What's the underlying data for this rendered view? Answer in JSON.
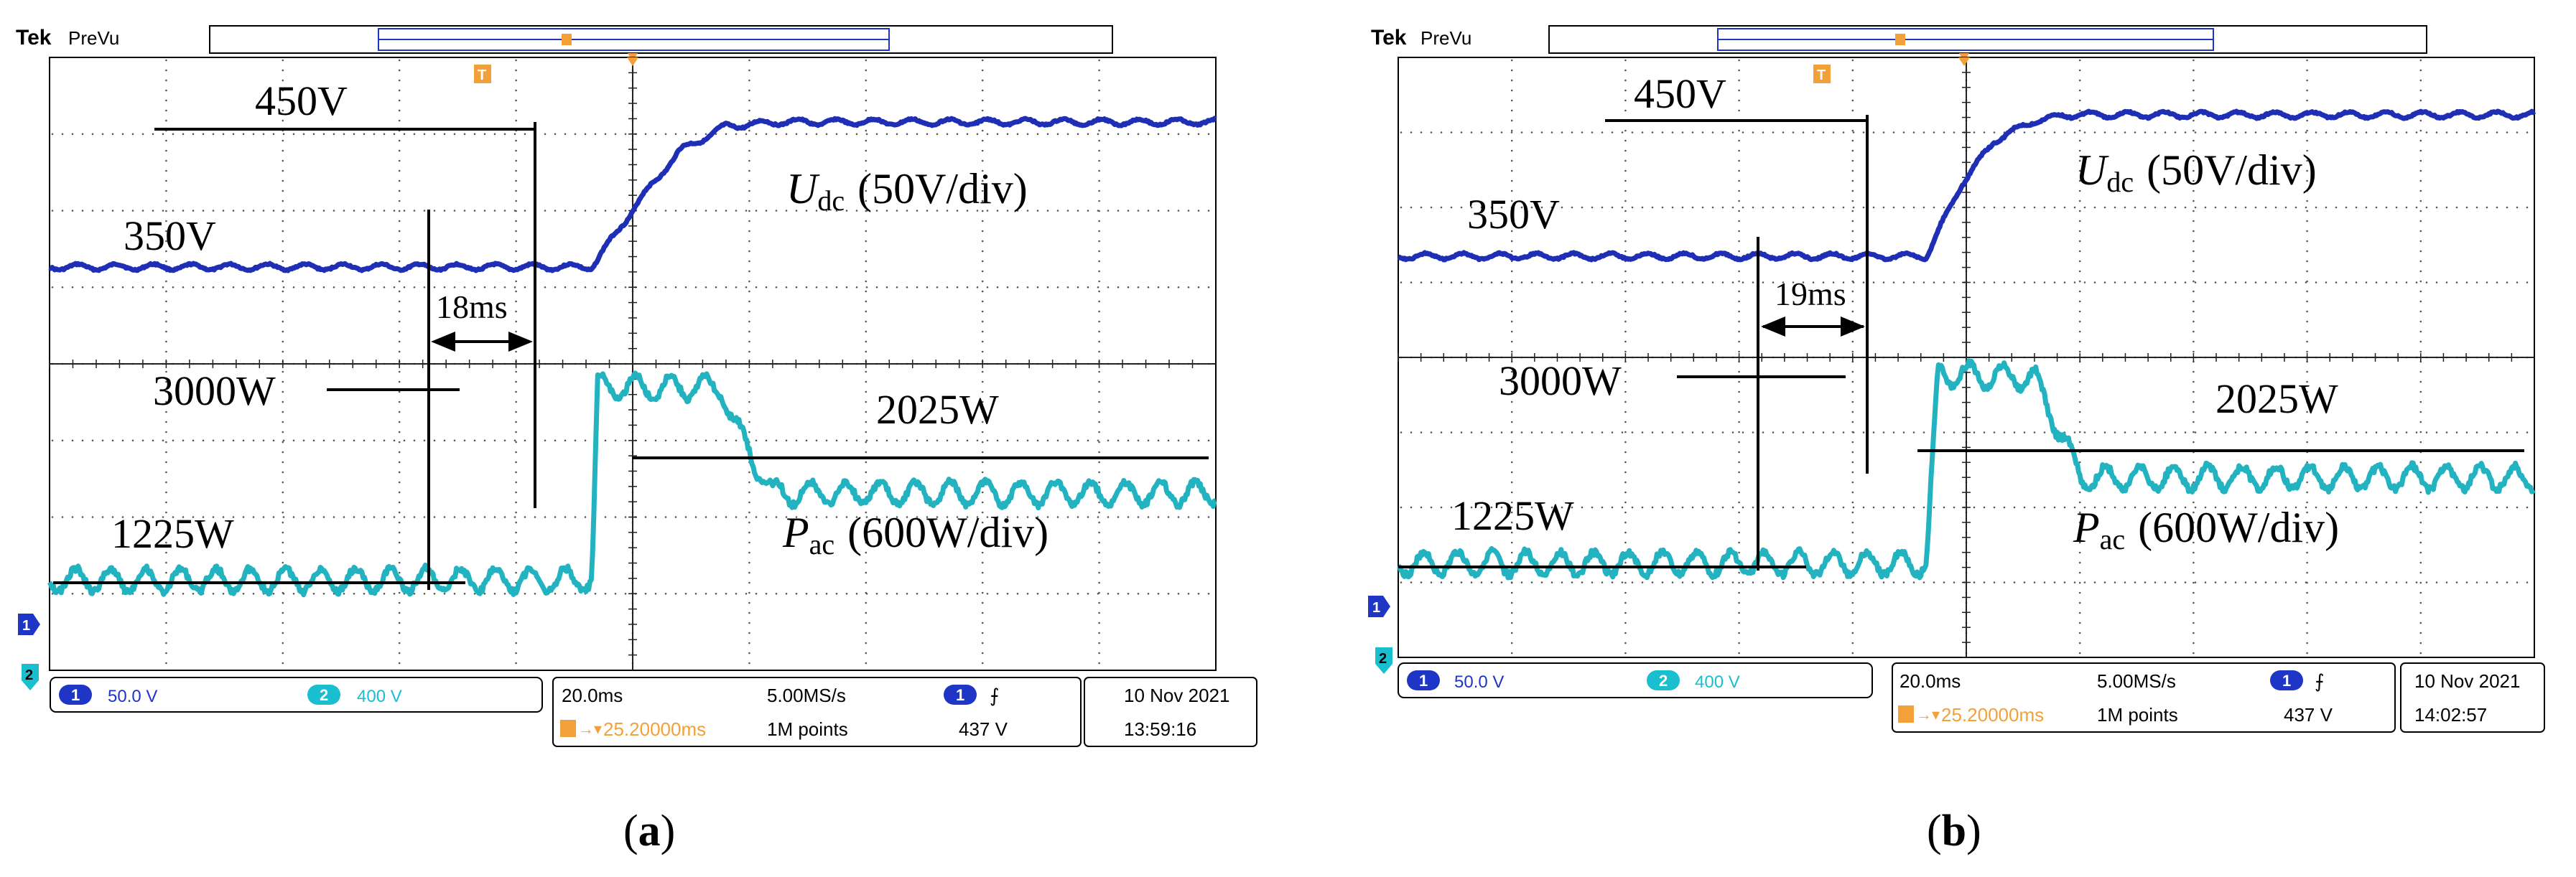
{
  "panels": [
    {
      "id": "a",
      "caption": "a",
      "header": {
        "brand": "Tek",
        "mode": "PreVu",
        "trigger_marker": "T"
      },
      "channels": [
        {
          "num": "1",
          "scale": "50.0 V",
          "color": "#1f35c6"
        },
        {
          "num": "2",
          "scale": "400 V",
          "color": "#19bfcf"
        }
      ],
      "timebase": {
        "per_div": "20.0ms",
        "trigger_pos": "25.20000ms",
        "sample_rate": "5.00MS/s",
        "record": "1M points",
        "trig_ch": "1",
        "trig_level": "437 V"
      },
      "date": "10 Nov 2021",
      "time": "13:59:16",
      "annotations": {
        "v_high": "450V",
        "v_low": "350V",
        "udc_var": "U",
        "udc_sub": "dc",
        "udc_scale": "(50V/div)",
        "interval": "18ms",
        "p_peak": "3000W",
        "p_final": "2025W",
        "p_init": "1225W",
        "pac_var": "P",
        "pac_sub": "ac",
        "pac_scale": "(600W/div)"
      }
    },
    {
      "id": "b",
      "caption": "b",
      "header": {
        "brand": "Tek",
        "mode": "PreVu",
        "trigger_marker": "T"
      },
      "channels": [
        {
          "num": "1",
          "scale": "50.0 V",
          "color": "#1f35c6"
        },
        {
          "num": "2",
          "scale": "400 V",
          "color": "#19bfcf"
        }
      ],
      "timebase": {
        "per_div": "20.0ms",
        "trigger_pos": "25.20000ms",
        "sample_rate": "5.00MS/s",
        "record": "1M points",
        "trig_ch": "1",
        "trig_level": "437 V"
      },
      "date": "10 Nov 2021",
      "time": "14:02:57",
      "annotations": {
        "v_high": "450V",
        "v_low": "350V",
        "udc_var": "U",
        "udc_sub": "dc",
        "udc_scale": "(50V/div)",
        "interval": "19ms",
        "p_peak": "3000W",
        "p_final": "2025W",
        "p_init": "1225W",
        "pac_var": "P",
        "pac_sub": "ac",
        "pac_scale": "(600W/div)"
      }
    }
  ],
  "chart_data": [
    {
      "type": "line",
      "panel": "a",
      "x_unit": "ms",
      "series": [
        {
          "name": "Udc",
          "unit": "V",
          "x": [
            0,
            93,
            101,
            108,
            116,
            125,
            131,
            200
          ],
          "values": [
            350,
            350,
            395,
            430,
            447,
            450,
            450,
            450
          ]
        },
        {
          "name": "Pac",
          "unit": "W",
          "x": [
            0,
            93,
            94,
            115,
            118,
            124,
            200
          ],
          "values": [
            1225,
            1225,
            3000,
            3000,
            2600,
            2025,
            2025
          ]
        }
      ],
      "step_time_ms": 93,
      "settling_time_ms": 18
    },
    {
      "type": "line",
      "panel": "b",
      "x_unit": "ms",
      "series": [
        {
          "name": "Udc",
          "unit": "V",
          "x": [
            0,
            93,
            99,
            105,
            112,
            118,
            200
          ],
          "values": [
            350,
            350,
            400,
            432,
            446,
            450,
            450
          ]
        },
        {
          "name": "Pac",
          "unit": "W",
          "x": [
            0,
            93,
            95,
            112,
            117,
            120,
            200
          ],
          "values": [
            1225,
            1225,
            3000,
            2950,
            2400,
            2025,
            2025
          ]
        }
      ],
      "step_time_ms": 93,
      "settling_time_ms": 19
    }
  ]
}
